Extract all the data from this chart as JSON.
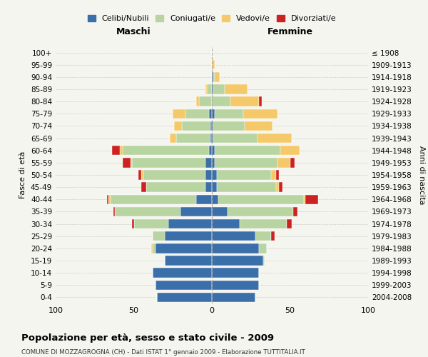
{
  "age_groups": [
    "0-4",
    "5-9",
    "10-14",
    "15-19",
    "20-24",
    "25-29",
    "30-34",
    "35-39",
    "40-44",
    "45-49",
    "50-54",
    "55-59",
    "60-64",
    "65-69",
    "70-74",
    "75-79",
    "80-84",
    "85-89",
    "90-94",
    "95-99",
    "100+"
  ],
  "birth_years": [
    "2004-2008",
    "1999-2003",
    "1994-1998",
    "1989-1993",
    "1984-1988",
    "1979-1983",
    "1974-1978",
    "1969-1973",
    "1964-1968",
    "1959-1963",
    "1954-1958",
    "1949-1953",
    "1944-1948",
    "1939-1943",
    "1934-1938",
    "1929-1933",
    "1924-1928",
    "1919-1923",
    "1914-1918",
    "1909-1913",
    "≤ 1908"
  ],
  "colors": {
    "celibi": "#3a6faa",
    "coniugati": "#b8d4a0",
    "vedovi": "#f5c96a",
    "divorziati": "#cc2222"
  },
  "male": {
    "celibi": [
      35,
      36,
      38,
      30,
      36,
      30,
      28,
      20,
      10,
      4,
      4,
      4,
      2,
      1,
      1,
      2,
      0,
      0,
      0,
      0,
      0
    ],
    "coniugati": [
      0,
      0,
      0,
      0,
      2,
      8,
      22,
      42,
      55,
      38,
      40,
      47,
      55,
      22,
      18,
      15,
      8,
      3,
      0,
      0,
      0
    ],
    "vedovi": [
      0,
      0,
      0,
      0,
      1,
      0,
      0,
      0,
      1,
      0,
      1,
      1,
      2,
      4,
      5,
      8,
      2,
      1,
      0,
      0,
      0
    ],
    "divorziati": [
      0,
      0,
      0,
      0,
      0,
      0,
      1,
      1,
      1,
      3,
      2,
      5,
      5,
      0,
      0,
      0,
      0,
      0,
      0,
      0,
      0
    ]
  },
  "female": {
    "nubili": [
      28,
      30,
      30,
      33,
      30,
      28,
      18,
      10,
      4,
      3,
      3,
      2,
      2,
      1,
      1,
      2,
      0,
      1,
      1,
      0,
      0
    ],
    "coniugate": [
      0,
      0,
      0,
      1,
      5,
      10,
      30,
      42,
      55,
      38,
      35,
      40,
      42,
      28,
      20,
      18,
      12,
      7,
      1,
      0,
      0
    ],
    "vedove": [
      0,
      0,
      0,
      0,
      0,
      0,
      0,
      0,
      1,
      2,
      3,
      8,
      12,
      22,
      18,
      22,
      18,
      15,
      3,
      2,
      0
    ],
    "divorziate": [
      0,
      0,
      0,
      0,
      0,
      2,
      3,
      3,
      8,
      2,
      2,
      3,
      0,
      0,
      0,
      0,
      2,
      0,
      0,
      0,
      0
    ]
  },
  "title": "Popolazione per età, sesso e stato civile - 2009",
  "subtitle": "COMUNE DI MOZZAGROGNA (CH) - Dati ISTAT 1° gennaio 2009 - Elaborazione TUTTITALIA.IT",
  "xlabel_left": "Maschi",
  "xlabel_right": "Femmine",
  "ylabel_left": "Fasce di età",
  "ylabel_right": "Anni di nascita",
  "xlim": 100,
  "background_color": "#f5f5f0",
  "legend_labels": [
    "Celibi/Nubili",
    "Coniugati/e",
    "Vedovi/e",
    "Divorziati/e"
  ]
}
